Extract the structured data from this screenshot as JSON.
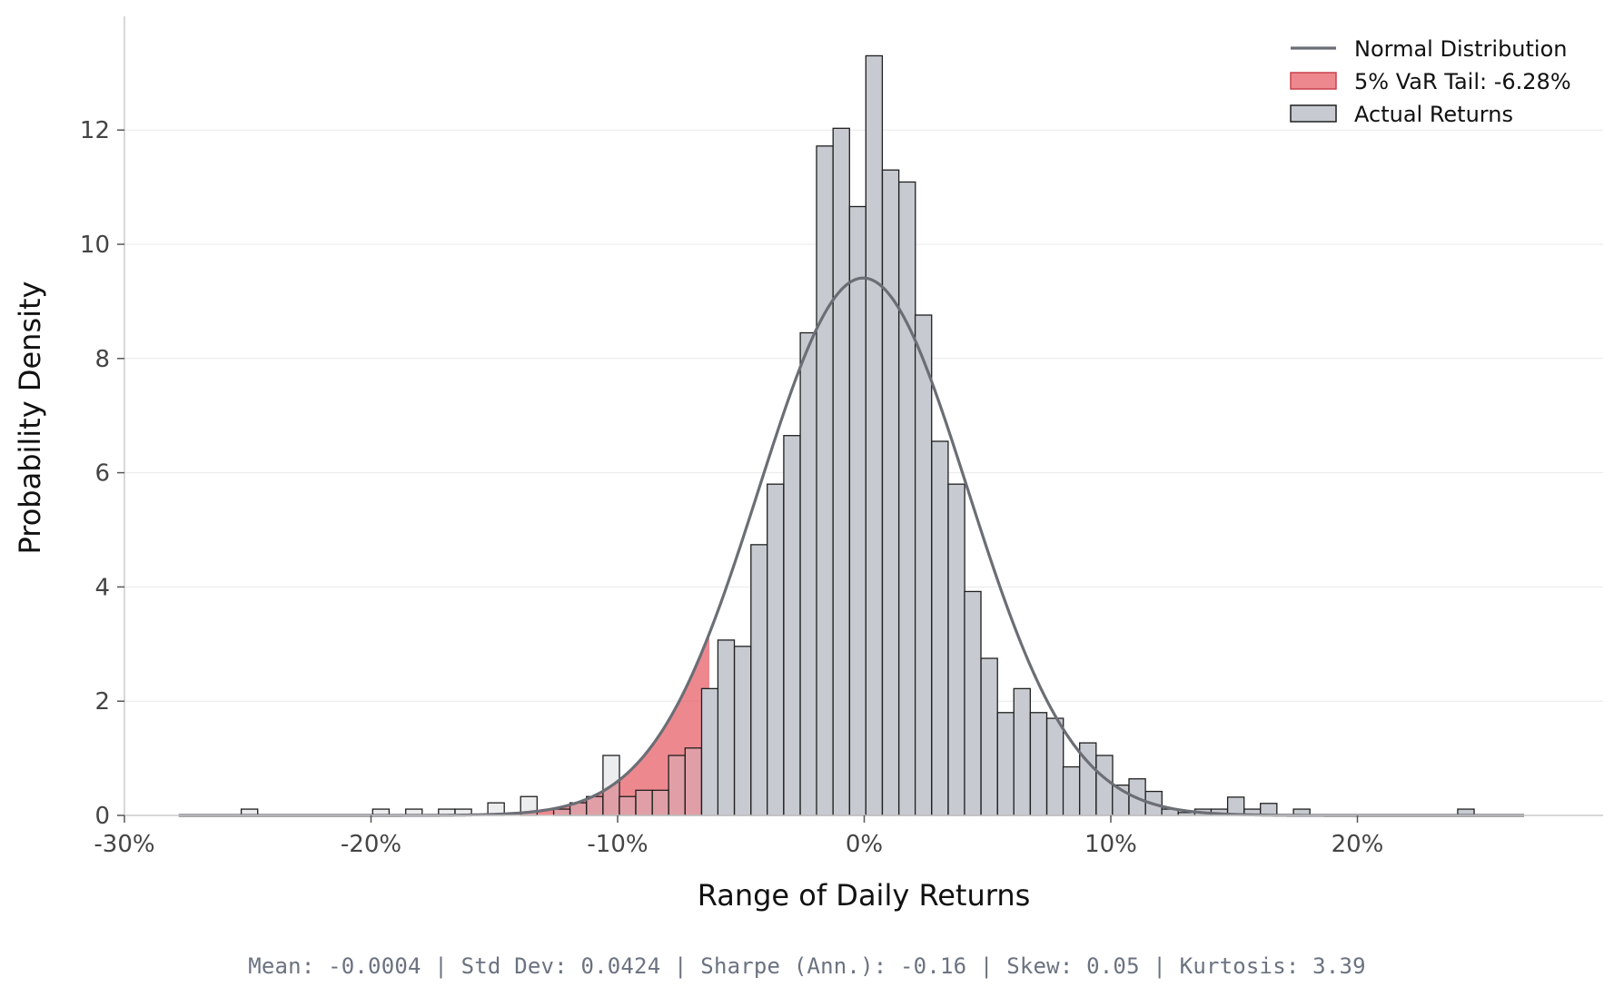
{
  "chart_data": {
    "type": "bar",
    "subtype": "histogram-with-normal-fit",
    "xlabel": "Range of Daily Returns",
    "ylabel": "Probability Density",
    "xlim": [
      -0.305,
      0.295
    ],
    "ylim": [
      0,
      13.9
    ],
    "x_ticks": [
      -0.3,
      -0.2,
      -0.1,
      0.0,
      0.1,
      0.2
    ],
    "x_tick_labels": [
      "-30%",
      "-20%",
      "-10%",
      "0%",
      "10%",
      "20%"
    ],
    "y_ticks": [
      0,
      2,
      4,
      6,
      8,
      10,
      12
    ],
    "y_tick_labels": [
      "0",
      "2",
      "4",
      "6",
      "8",
      "10",
      "12"
    ],
    "grid": "horizontal",
    "legend_position": "top-right",
    "legend": [
      {
        "label": "Normal Distribution",
        "kind": "line",
        "color": "#6b6e75"
      },
      {
        "label": "5% VaR Tail: -6.28%",
        "kind": "patch",
        "color": "#e8606a"
      },
      {
        "label": "Actual Returns",
        "kind": "patch",
        "color": "#c7cbd1"
      }
    ],
    "var_threshold": -0.0628,
    "bin_width": 0.00667,
    "bins": [
      {
        "x": -0.2493,
        "density": 0.11
      },
      {
        "x": -0.196,
        "density": 0.11
      },
      {
        "x": -0.1826,
        "density": 0.11
      },
      {
        "x": -0.1693,
        "density": 0.11
      },
      {
        "x": -0.1626,
        "density": 0.11
      },
      {
        "x": -0.1493,
        "density": 0.22
      },
      {
        "x": -0.136,
        "density": 0.33
      },
      {
        "x": -0.1226,
        "density": 0.11
      },
      {
        "x": -0.116,
        "density": 0.22
      },
      {
        "x": -0.1093,
        "density": 0.33
      },
      {
        "x": -0.1026,
        "density": 1.05
      },
      {
        "x": -0.096,
        "density": 0.33
      },
      {
        "x": -0.0893,
        "density": 0.44
      },
      {
        "x": -0.0826,
        "density": 0.44
      },
      {
        "x": -0.076,
        "density": 1.05
      },
      {
        "x": -0.0693,
        "density": 1.18
      },
      {
        "x": -0.0626,
        "density": 2.22
      },
      {
        "x": -0.056,
        "density": 3.07
      },
      {
        "x": -0.0493,
        "density": 2.96
      },
      {
        "x": -0.0426,
        "density": 4.74
      },
      {
        "x": -0.036,
        "density": 5.8
      },
      {
        "x": -0.0293,
        "density": 6.65
      },
      {
        "x": -0.0226,
        "density": 8.45
      },
      {
        "x": -0.016,
        "density": 11.72
      },
      {
        "x": -0.0093,
        "density": 12.03
      },
      {
        "x": -0.0026,
        "density": 10.66
      },
      {
        "x": 0.004,
        "density": 13.3
      },
      {
        "x": 0.0107,
        "density": 11.3
      },
      {
        "x": 0.0174,
        "density": 11.09
      },
      {
        "x": 0.024,
        "density": 8.76
      },
      {
        "x": 0.0307,
        "density": 6.55
      },
      {
        "x": 0.0374,
        "density": 5.8
      },
      {
        "x": 0.044,
        "density": 3.92
      },
      {
        "x": 0.0507,
        "density": 2.75
      },
      {
        "x": 0.0574,
        "density": 1.8
      },
      {
        "x": 0.064,
        "density": 2.22
      },
      {
        "x": 0.0707,
        "density": 1.8
      },
      {
        "x": 0.0774,
        "density": 1.7
      },
      {
        "x": 0.084,
        "density": 0.85
      },
      {
        "x": 0.0907,
        "density": 1.27
      },
      {
        "x": 0.0974,
        "density": 1.05
      },
      {
        "x": 0.104,
        "density": 0.53
      },
      {
        "x": 0.1107,
        "density": 0.64
      },
      {
        "x": 0.1174,
        "density": 0.42
      },
      {
        "x": 0.124,
        "density": 0.11
      },
      {
        "x": 0.1307,
        "density": 0.05
      },
      {
        "x": 0.1374,
        "density": 0.11
      },
      {
        "x": 0.144,
        "density": 0.11
      },
      {
        "x": 0.1507,
        "density": 0.32
      },
      {
        "x": 0.1574,
        "density": 0.11
      },
      {
        "x": 0.164,
        "density": 0.21
      },
      {
        "x": 0.1774,
        "density": 0.11
      },
      {
        "x": 0.244,
        "density": 0.11
      }
    ],
    "normal_fit": {
      "mean": -0.0004,
      "std": 0.0424,
      "x_range": [
        -0.278,
        0.268
      ]
    }
  },
  "stats": {
    "text": "Mean: -0.0004  |  Std Dev: 0.0424  |  Sharpe (Ann.): -0.16  |  Skew: 0.05  |  Kurtosis: 3.39"
  },
  "colors": {
    "bar_fill": "#c7cbd1",
    "bar_edge": "#1f1f1f",
    "tail_fill": "#e8606a",
    "tail_edge": "#c9404c",
    "normal_line": "#6b6e75",
    "grid": "#e8e8e8",
    "axis": "#cccccc",
    "tick_text": "#444444"
  }
}
